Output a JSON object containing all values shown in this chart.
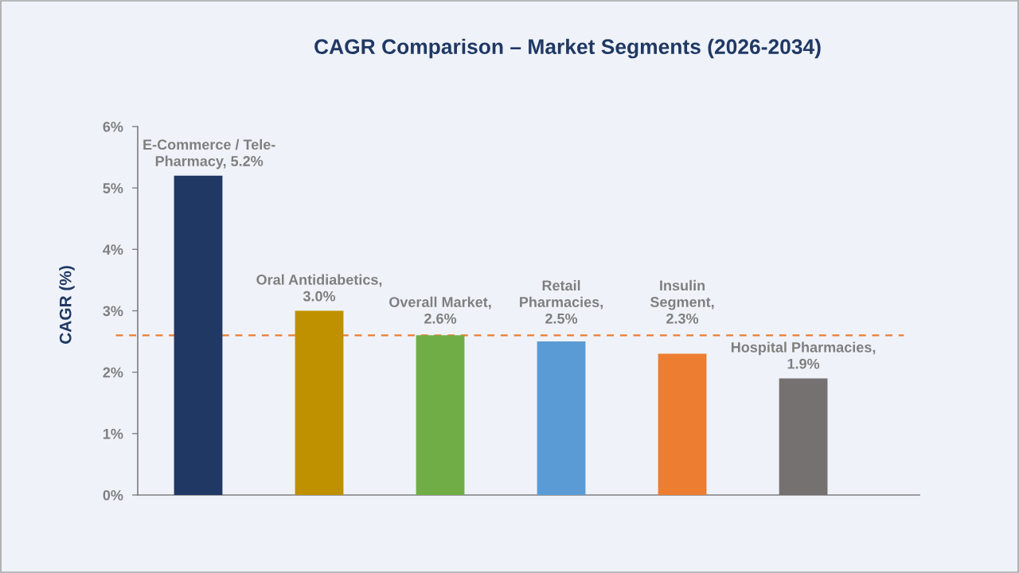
{
  "chart_data": {
    "type": "bar",
    "title": "CAGR Comparison – Market Segments (2026-2034)",
    "ylabel": "CAGR (%)",
    "categories": [
      null,
      null,
      null,
      null,
      null,
      null
    ],
    "values": [
      5.2,
      3.0,
      2.6,
      2.5,
      2.3,
      1.9
    ],
    "colors": [
      "#203864",
      "#bf9000",
      "#70ad47",
      "#5b9bd5",
      "#ed7d31",
      "#767171"
    ],
    "value_labels": [
      "E-Commerce / Tele-\nPharmacy, 5.2%",
      "Oral Antidiabetics,\n3.0%",
      "Overall Market,\n2.6%",
      "Retail\nPharmacies,\n2.5%",
      "Insulin\nSegment,\n2.3%",
      "Hospital Pharmacies,\n1.9%"
    ],
    "ylim": [
      0,
      6
    ],
    "yticks": [
      {
        "value": 0,
        "label": "0%"
      },
      {
        "value": 1,
        "label": "1%"
      },
      {
        "value": 2,
        "label": "2%"
      },
      {
        "value": 3,
        "label": "3%"
      },
      {
        "value": 4,
        "label": "4%"
      },
      {
        "value": 5,
        "label": "5%"
      },
      {
        "value": 6,
        "label": "6%"
      }
    ],
    "ref_lines": [
      {
        "axis": "y",
        "value": 2.6,
        "color": "#ed7d31",
        "line_style": "dashed"
      }
    ],
    "tick_labels": "y",
    "grid": false
  }
}
